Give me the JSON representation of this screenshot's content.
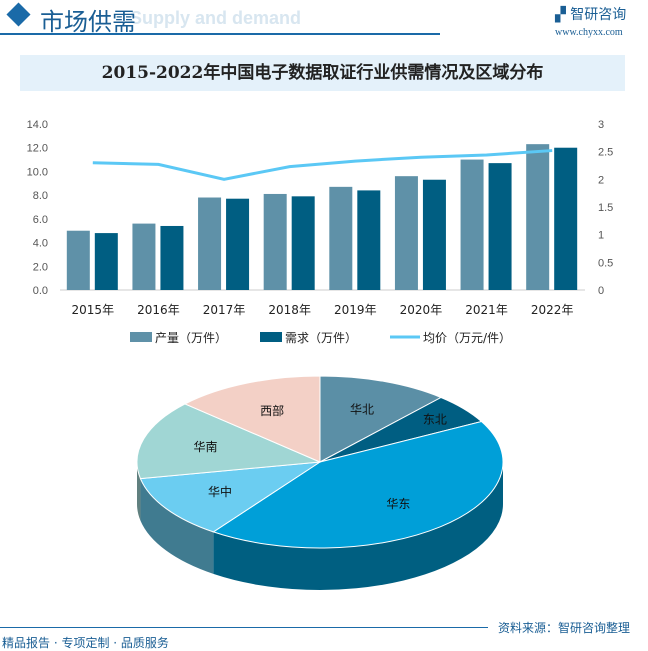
{
  "header": {
    "title": "市场供需",
    "subtitle": "Supply and demand",
    "logo_text": "智研咨询",
    "logo_url": "www.chyxx.com"
  },
  "title": "2015-2022年中国电子数据取证行业供需情况及区域分布",
  "chart_data": [
    {
      "type": "bar",
      "categories": [
        "2015年",
        "2016年",
        "2017年",
        "2018年",
        "2019年",
        "2020年",
        "2021年",
        "2022年"
      ],
      "series": [
        {
          "name": "产量（万件）",
          "type": "bar",
          "axis": "left",
          "color": "#5f91a8",
          "values": [
            5.0,
            5.6,
            7.8,
            8.1,
            8.7,
            9.6,
            11.0,
            12.3
          ]
        },
        {
          "name": "需求（万件）",
          "type": "bar",
          "axis": "left",
          "color": "#005e82",
          "values": [
            4.8,
            5.4,
            7.7,
            7.9,
            8.4,
            9.3,
            10.7,
            12.0
          ]
        },
        {
          "name": "均价（万元/件）",
          "type": "line",
          "axis": "right",
          "color": "#5bc8f5",
          "values": [
            2.3,
            2.27,
            2.0,
            2.23,
            2.33,
            2.4,
            2.44,
            2.52
          ]
        }
      ],
      "ylim": [
        0,
        14
      ],
      "yticks": [
        "0.0",
        "2.0",
        "4.0",
        "6.0",
        "8.0",
        "10.0",
        "12.0",
        "14.0"
      ],
      "y2lim": [
        0,
        3
      ],
      "y2ticks": [
        "0",
        "0.5",
        "1",
        "1.5",
        "2",
        "2.5",
        "3"
      ],
      "legend": "bottom",
      "grid": false
    },
    {
      "type": "pie",
      "style": "3d",
      "slices": [
        {
          "label": "华北",
          "value": 11.5,
          "color": "#5b8fa6"
        },
        {
          "label": "东北",
          "value": 5.7,
          "color": "#005e82"
        },
        {
          "label": "华东",
          "value": 42.7,
          "color": "#009fd8"
        },
        {
          "label": "华中",
          "value": 12.0,
          "color": "#6bcdf1"
        },
        {
          "label": "华南",
          "value": 14.9,
          "color": "#a0d6d4"
        },
        {
          "label": "西部",
          "value": 13.2,
          "color": "#f3d0c6"
        }
      ]
    }
  ],
  "footer": {
    "source": "资料来源：智研咨询整理",
    "slogan": "精品报告 · 专项定制 · 品质服务"
  }
}
